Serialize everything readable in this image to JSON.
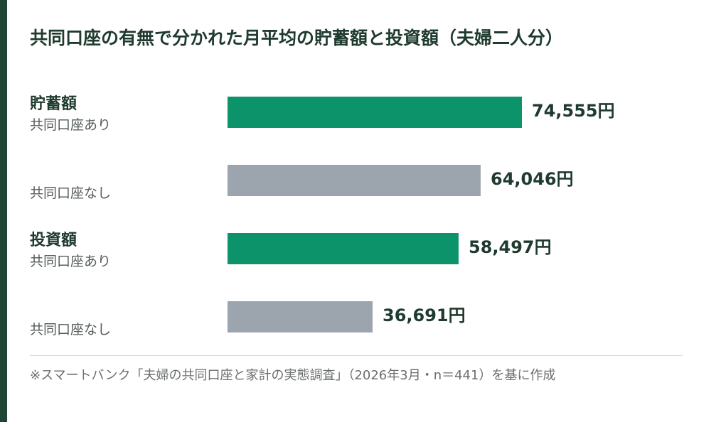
{
  "title": "共同口座の有無で分かれた月平均の貯蓄額と投資額（夫婦二人分）",
  "source": "※スマートバンク「夫婦の共同口座と家計の実態調査」（2026年3月・n＝441）を基に作成",
  "colors": {
    "with_joint_account": "#0c936a",
    "without_joint_account": "#9ca4ae",
    "accent_bar": "#1f4535"
  },
  "chart_data": {
    "type": "bar",
    "orientation": "horizontal",
    "title": "共同口座の有無で分かれた月平均の貯蓄額と投資額（夫婦二人分）",
    "unit": "円",
    "groups": [
      {
        "name": "貯蓄額",
        "bars": [
          {
            "label": "共同口座あり",
            "value": 74555,
            "display": "74,555円"
          },
          {
            "label": "共同口座なし",
            "value": 64046,
            "display": "64,046円"
          }
        ]
      },
      {
        "name": "投資額",
        "bars": [
          {
            "label": "共同口座あり",
            "value": 58497,
            "display": "58,497円"
          },
          {
            "label": "共同口座なし",
            "value": 36691,
            "display": "36,691円"
          }
        ]
      }
    ],
    "xlim": [
      0,
      100000
    ]
  }
}
